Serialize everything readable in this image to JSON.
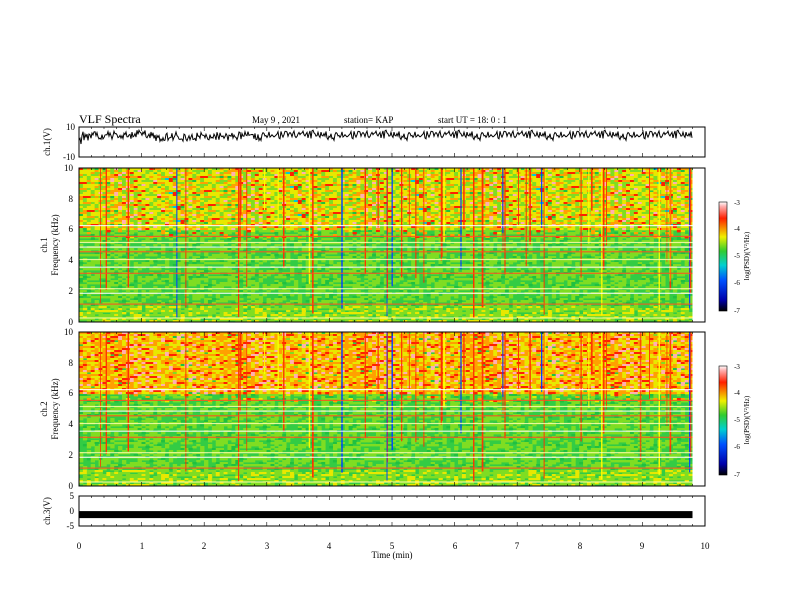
{
  "header": {
    "title": "VLF Spectra",
    "date": "May 9 , 2021",
    "station": "station= KAP",
    "start": "start  UT =  18: 0  : 1"
  },
  "chart_data": [
    {
      "type": "line",
      "panel": "ch1-waveform",
      "ylabel": "ch.1(V)",
      "ylim": [
        -10,
        10
      ],
      "yticks": [
        "10",
        "-10"
      ],
      "x_range_min": [
        0,
        9.8
      ],
      "description_values": {
        "baseline": 4,
        "amplitude": 3
      }
    },
    {
      "type": "heatmap",
      "panel": "ch1-spectrogram",
      "ylabel_line1": "ch.1",
      "ylabel_line2": "Frequency  (kHz)",
      "ylim": [
        0,
        10
      ],
      "yticks": [
        "0",
        "2",
        "4",
        "6",
        "8",
        "10"
      ],
      "x_range_min": [
        0,
        9.8
      ],
      "colorbar": {
        "label": "log(PSD)(V²/Hz)",
        "range": [
          -7,
          -3
        ],
        "ticks": [
          "-3",
          "-4",
          "-5",
          "-6",
          "-7"
        ]
      }
    },
    {
      "type": "heatmap",
      "panel": "ch2-spectrogram",
      "ylabel_line1": "ch.2",
      "ylabel_line2": "Frequency  (kHz)",
      "ylim": [
        0,
        10
      ],
      "yticks": [
        "0",
        "2",
        "4",
        "6",
        "8",
        "10"
      ],
      "x_range_min": [
        0,
        9.8
      ],
      "colorbar": {
        "label": "log(PSD)(V²/Hz)",
        "range": [
          -7,
          -3
        ],
        "ticks": [
          "-3",
          "-4",
          "-5",
          "-6",
          "-7"
        ]
      }
    },
    {
      "type": "line",
      "panel": "ch3-waveform",
      "ylabel": "ch.3(V)",
      "ylim": [
        -5,
        5
      ],
      "yticks": [
        "5",
        "0",
        "-5"
      ],
      "values_constant": -1.2,
      "x_range_min": [
        0,
        9.8
      ]
    }
  ],
  "xaxis": {
    "label": "Time  (min)",
    "range": [
      0,
      10
    ],
    "ticks": [
      "0",
      "1",
      "2",
      "3",
      "4",
      "5",
      "6",
      "7",
      "8",
      "9",
      "10"
    ]
  },
  "colors": {
    "frame": "#000000",
    "trace": "#000000",
    "spec_base": "#33cc44"
  }
}
